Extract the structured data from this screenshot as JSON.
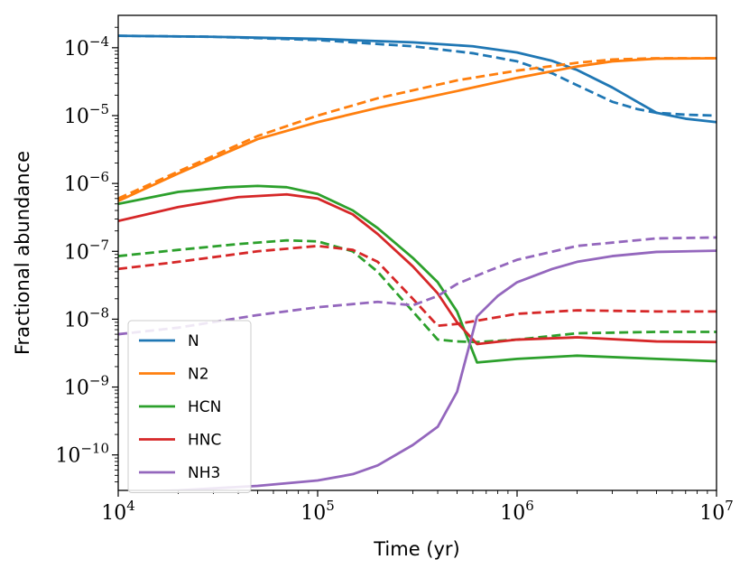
{
  "chart_data": {
    "type": "line",
    "title": "",
    "xlabel": "Time (yr)",
    "ylabel": "Fractional abundance",
    "xscale": "log",
    "yscale": "log",
    "xlim": [
      10000,
      10000000
    ],
    "ylim": [
      3e-11,
      0.0003
    ],
    "x_ticks": [
      {
        "value": 10000,
        "base": "10",
        "exp": "4"
      },
      {
        "value": 100000,
        "base": "10",
        "exp": "5"
      },
      {
        "value": 1000000,
        "base": "10",
        "exp": "6"
      },
      {
        "value": 10000000,
        "base": "10",
        "exp": "7"
      }
    ],
    "y_ticks": [
      {
        "value": 1e-10,
        "base": "10",
        "exp": "−10"
      },
      {
        "value": 1e-09,
        "base": "10",
        "exp": "−9"
      },
      {
        "value": 1e-08,
        "base": "10",
        "exp": "−8"
      },
      {
        "value": 1e-07,
        "base": "10",
        "exp": "−7"
      },
      {
        "value": 1e-06,
        "base": "10",
        "exp": "−6"
      },
      {
        "value": 1e-05,
        "base": "10",
        "exp": "−5"
      },
      {
        "value": 0.0001,
        "base": "10",
        "exp": "−4"
      }
    ],
    "legend": {
      "placement": "bottom-left",
      "entries": [
        "N",
        "N2",
        "HCN",
        "HNC",
        "NH3"
      ]
    },
    "series": [
      {
        "name": "N",
        "color": "#1f77b4",
        "style": "solid",
        "x": [
          10000,
          30000,
          100000,
          300000,
          600000,
          1000000,
          1500000,
          2000000,
          3000000,
          4000000,
          5000000,
          7000000,
          10000000
        ],
        "y": [
          0.00015,
          0.000145,
          0.000135,
          0.00012,
          0.000105,
          8.5e-05,
          6.4e-05,
          4.7e-05,
          2.6e-05,
          1.6e-05,
          1.1e-05,
          9e-06,
          8e-06
        ]
      },
      {
        "name": "N",
        "color": "#1f77b4",
        "style": "dashed",
        "x": [
          10000,
          30000,
          100000,
          300000,
          600000,
          1000000,
          1500000,
          2000000,
          3000000,
          4000000,
          5000000,
          7000000,
          10000000
        ],
        "y": [
          0.00015,
          0.000145,
          0.00013,
          0.000105,
          8.3e-05,
          6.3e-05,
          4.2e-05,
          2.8e-05,
          1.6e-05,
          1.25e-05,
          1.1e-05,
          1.03e-05,
          1e-05
        ]
      },
      {
        "name": "N2",
        "color": "#ff7f0e",
        "style": "solid",
        "x": [
          10000,
          20000,
          50000,
          100000,
          200000,
          500000,
          1000000,
          2000000,
          3000000,
          5000000,
          10000000
        ],
        "y": [
          5.5e-07,
          1.4e-06,
          4.5e-06,
          8e-06,
          1.3e-05,
          2.3e-05,
          3.6e-05,
          5.3e-05,
          6.3e-05,
          6.9e-05,
          7e-05
        ]
      },
      {
        "name": "N2",
        "color": "#ff7f0e",
        "style": "dashed",
        "x": [
          10000,
          20000,
          50000,
          100000,
          200000,
          500000,
          1000000,
          2000000,
          3000000,
          5000000,
          10000000
        ],
        "y": [
          6e-07,
          1.5e-06,
          5e-06,
          1e-05,
          1.8e-05,
          3.3e-05,
          4.6e-05,
          6e-05,
          6.7e-05,
          7e-05,
          7e-05
        ]
      },
      {
        "name": "HCN",
        "color": "#2ca02c",
        "style": "solid",
        "x": [
          10000,
          20000,
          35000,
          50000,
          70000,
          100000,
          150000,
          200000,
          300000,
          400000,
          500000,
          630000,
          1000000,
          2000000,
          5000000,
          10000000
        ],
        "y": [
          5e-07,
          7.5e-07,
          8.8e-07,
          9.2e-07,
          8.8e-07,
          7e-07,
          4e-07,
          2.2e-07,
          8e-08,
          3.5e-08,
          1.3e-08,
          2.3e-09,
          2.6e-09,
          2.9e-09,
          2.6e-09,
          2.4e-09
        ]
      },
      {
        "name": "HCN",
        "color": "#2ca02c",
        "style": "dashed",
        "x": [
          10000,
          20000,
          40000,
          70000,
          100000,
          150000,
          200000,
          300000,
          400000,
          500000,
          630000,
          1000000,
          2000000,
          5000000,
          10000000
        ],
        "y": [
          8.5e-08,
          1.05e-07,
          1.28e-07,
          1.45e-07,
          1.4e-07,
          1e-07,
          5e-08,
          1.3e-08,
          5e-09,
          4.7e-09,
          4.6e-09,
          5e-09,
          6.2e-09,
          6.5e-09,
          6.5e-09
        ]
      },
      {
        "name": "HNC",
        "color": "#d62728",
        "style": "solid",
        "x": [
          10000,
          20000,
          40000,
          70000,
          100000,
          150000,
          200000,
          300000,
          400000,
          500000,
          630000,
          1000000,
          2000000,
          5000000,
          10000000
        ],
        "y": [
          2.8e-07,
          4.5e-07,
          6.3e-07,
          6.9e-07,
          6e-07,
          3.5e-07,
          1.8e-07,
          6e-08,
          2.4e-08,
          9e-09,
          4.3e-09,
          5e-09,
          5.4e-09,
          4.7e-09,
          4.6e-09
        ]
      },
      {
        "name": "HNC",
        "color": "#d62728",
        "style": "dashed",
        "x": [
          10000,
          20000,
          50000,
          100000,
          150000,
          200000,
          300000,
          400000,
          500000,
          630000,
          1000000,
          2000000,
          5000000,
          10000000
        ],
        "y": [
          5.5e-08,
          7e-08,
          1e-07,
          1.2e-07,
          1.05e-07,
          7e-08,
          2e-08,
          8e-09,
          8.5e-09,
          9.5e-09,
          1.2e-08,
          1.35e-08,
          1.3e-08,
          1.3e-08
        ]
      },
      {
        "name": "NH3",
        "color": "#9467bd",
        "style": "solid",
        "x": [
          10000,
          20000,
          50000,
          100000,
          150000,
          200000,
          300000,
          400000,
          500000,
          630000,
          800000,
          1000000,
          1500000,
          2000000,
          3000000,
          5000000,
          10000000
        ],
        "y": [
          2.8e-11,
          3e-11,
          3.5e-11,
          4.2e-11,
          5.2e-11,
          7e-11,
          1.4e-10,
          2.6e-10,
          8.5e-10,
          1.1e-08,
          2.2e-08,
          3.5e-08,
          5.5e-08,
          7e-08,
          8.5e-08,
          9.8e-08,
          1.02e-07
        ]
      },
      {
        "name": "NH3",
        "color": "#9467bd",
        "style": "dashed",
        "x": [
          10000,
          20000,
          50000,
          100000,
          200000,
          300000,
          400000,
          500000,
          700000,
          1000000,
          2000000,
          5000000,
          10000000
        ],
        "y": [
          6e-09,
          7.5e-09,
          1.15e-08,
          1.5e-08,
          1.8e-08,
          1.6e-08,
          2.2e-08,
          3.3e-08,
          5e-08,
          7.5e-08,
          1.2e-07,
          1.55e-07,
          1.6e-07
        ]
      }
    ]
  }
}
